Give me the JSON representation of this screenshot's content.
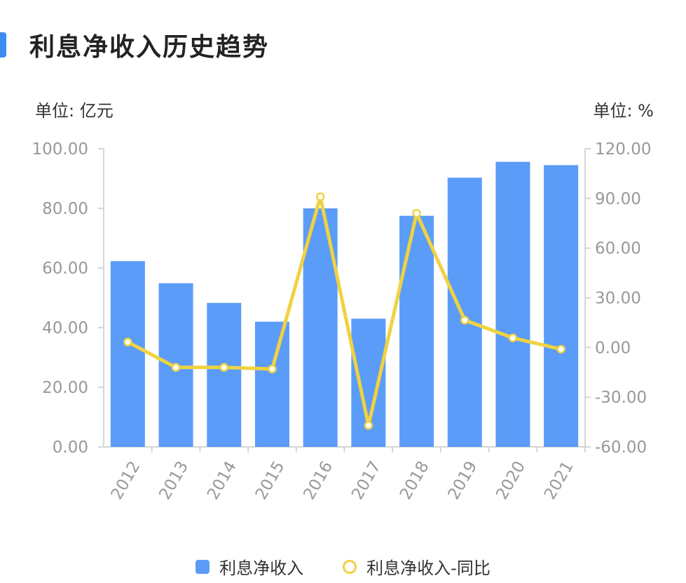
{
  "title": "利息净收入历史趋势",
  "unit_left": "单位: 亿元",
  "unit_right": "单位: %",
  "colors": {
    "bar": "#5b9cf8",
    "line": "#f0d242",
    "accent": "#3d8cf0"
  },
  "chart_data": {
    "type": "bar",
    "categories": [
      "2012",
      "2013",
      "2014",
      "2015",
      "2016",
      "2017",
      "2018",
      "2019",
      "2020",
      "2021"
    ],
    "series": [
      {
        "name": "利息净收入",
        "type": "bar",
        "axis": "left",
        "values": [
          62.3,
          54.9,
          48.3,
          42.0,
          80.0,
          43.0,
          77.5,
          90.3,
          95.6,
          94.5
        ]
      },
      {
        "name": "利息净收入-同比",
        "type": "line",
        "axis": "right",
        "values": [
          3.3,
          -12.0,
          -12.0,
          -13.0,
          91.0,
          -47.0,
          81.0,
          16.5,
          5.8,
          -1.0
        ]
      }
    ],
    "y_left": {
      "min": 0,
      "max": 100,
      "ticks": [
        "0.00",
        "20.00",
        "40.00",
        "60.00",
        "80.00",
        "100.00"
      ]
    },
    "y_right": {
      "min": -60,
      "max": 120,
      "ticks": [
        "-60.00",
        "-30.00",
        "0.00",
        "30.00",
        "60.00",
        "90.00",
        "120.00"
      ]
    },
    "legend_position": "bottom",
    "grid": false
  }
}
